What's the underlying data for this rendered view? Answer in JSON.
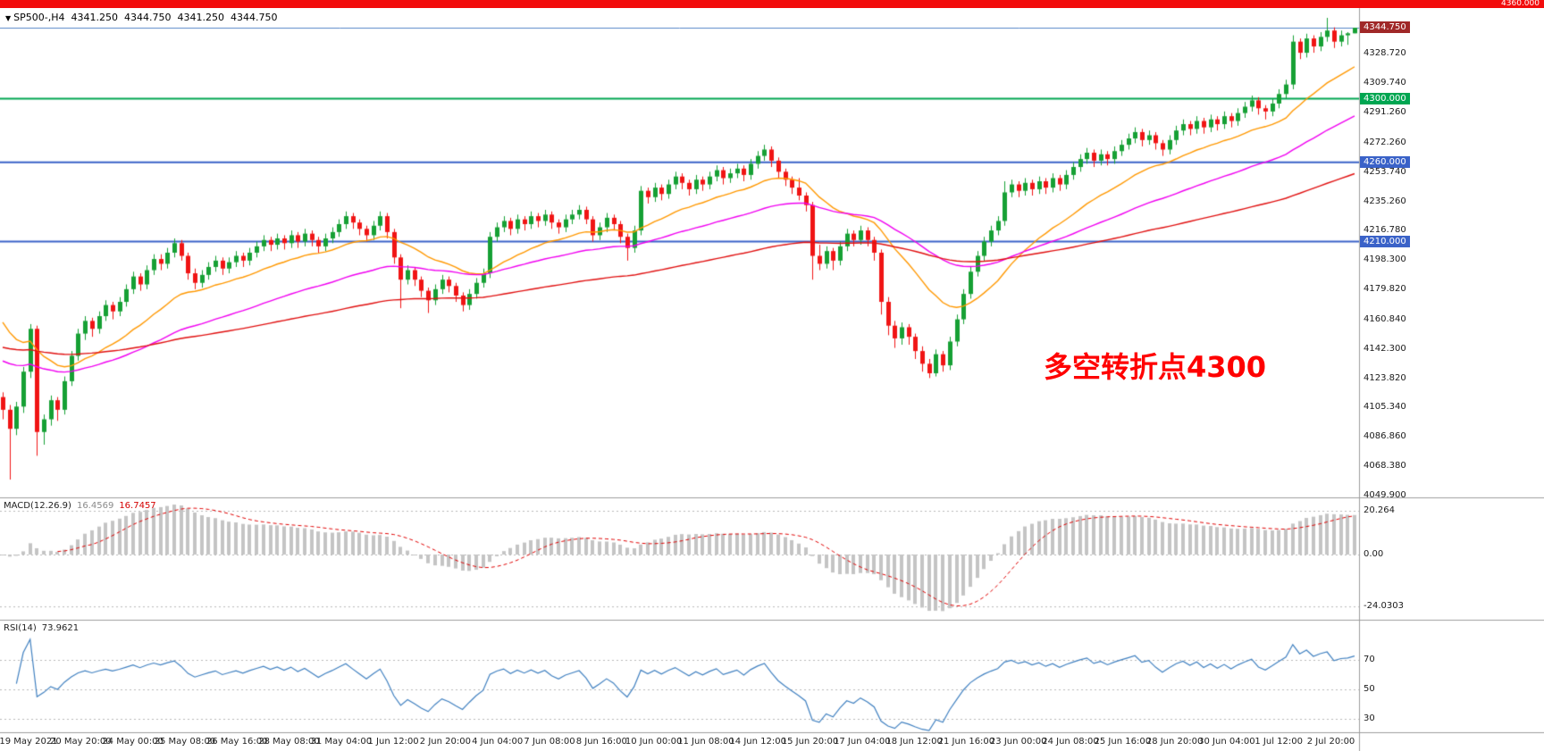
{
  "header": {
    "symbol": "SP500-,H4",
    "open": "4341.250",
    "high": "4344.750",
    "low": "4341.250",
    "close": "4344.750"
  },
  "icons": {
    "symbol_marker": "▼"
  },
  "annotation": {
    "text": "多空转折点4300",
    "color": "#FF0000"
  },
  "current_price_line": {
    "value": 4344.75,
    "color": "#5585C8"
  },
  "price_scale": {
    "current": {
      "label": "4344.750",
      "value": 4344.75,
      "bg": "#A02828"
    }
  },
  "hlines": [
    {
      "label": "4360.000",
      "value": 4360.0,
      "color": "#F20C0C",
      "style": "bar"
    },
    {
      "label": "4300.000",
      "value": 4300.0,
      "color": "#00A651"
    },
    {
      "label": "4260.000",
      "value": 4260.0,
      "color": "#3A62C8"
    },
    {
      "label": "4210.000",
      "value": 4210.0,
      "color": "#3A62C8"
    }
  ],
  "indicators": {
    "macd": {
      "name": "MACD(12.26.9)",
      "value_main": "16.4569",
      "value_signal": "16.7457",
      "fast": 12,
      "slow": 26,
      "signal": 9,
      "scale_max": {
        "label": "20.264",
        "value": 20.264
      },
      "scale_zero": {
        "label": "0.00",
        "value": 0
      },
      "scale_min": {
        "label": "-24.0303",
        "value": -24.0303
      },
      "hist_color": "#C4C4C4",
      "signal_color": "#E00000"
    },
    "rsi": {
      "name": "RSI(14)",
      "value": "73.9621",
      "period": 14,
      "levels": [
        {
          "label": "70",
          "value": 70
        },
        {
          "label": "50",
          "value": 50
        },
        {
          "label": "30",
          "value": 30
        }
      ],
      "line_color": "#4080C0"
    }
  },
  "chart_data": {
    "type": "candlestick",
    "symbol": "SP500-",
    "timeframe": "H4",
    "title": "SP500- H4 candlestick chart with MACD(12,26,9) and RSI(14)",
    "ylim": [
      4049.9,
      4360.0
    ],
    "grid": "off",
    "bull_color": "#16A034",
    "bear_color": "#F01414",
    "y_ticks": [
      {
        "label": "4328.720",
        "value": 4328.72
      },
      {
        "label": "4309.740",
        "value": 4309.74
      },
      {
        "label": "4291.260",
        "value": 4291.26
      },
      {
        "label": "4272.260",
        "value": 4272.26
      },
      {
        "label": "4253.740",
        "value": 4253.74
      },
      {
        "label": "4235.260",
        "value": 4235.26
      },
      {
        "label": "4216.780",
        "value": 4216.78
      },
      {
        "label": "4198.300",
        "value": 4198.3
      },
      {
        "label": "4179.820",
        "value": 4179.82
      },
      {
        "label": "4160.840",
        "value": 4160.84
      },
      {
        "label": "4142.300",
        "value": 4142.3
      },
      {
        "label": "4123.820",
        "value": 4123.82
      },
      {
        "label": "4105.340",
        "value": 4105.34
      },
      {
        "label": "4086.860",
        "value": 4086.86
      },
      {
        "label": "4068.380",
        "value": 4068.38
      },
      {
        "label": "4049.900",
        "value": 4049.9
      }
    ],
    "time_labels": [
      "19 May 2021",
      "20 May 20:00",
      "24 May 00:00",
      "25 May 08:00",
      "26 May 16:00",
      "28 May 08:00",
      "31 May 04:00",
      "1 Jun 12:00",
      "2 Jun 20:00",
      "4 Jun 04:00",
      "7 Jun 08:00",
      "8 Jun 16:00",
      "10 Jun 00:00",
      "11 Jun 08:00",
      "14 Jun 12:00",
      "15 Jun 20:00",
      "17 Jun 04:00",
      "18 Jun 12:00",
      "21 Jun 16:00",
      "23 Jun 00:00",
      "24 Jun 08:00",
      "25 Jun 16:00",
      "28 Jun 20:00",
      "30 Jun 04:00",
      "1 Jul 12:00",
      "2 Jul 20:00"
    ],
    "moving_averages": [
      {
        "period": 20,
        "color": "#FF9800",
        "start": 4165
      },
      {
        "period": 50,
        "color": "#F000F0",
        "start": 4136
      },
      {
        "period": 120,
        "color": "#E01010",
        "start": 4144
      }
    ],
    "candles": [
      [
        4112,
        4115,
        4098,
        4104
      ],
      [
        4104,
        4107,
        4060,
        4092
      ],
      [
        4092,
        4109,
        4088,
        4106
      ],
      [
        4106,
        4131,
        4102,
        4128
      ],
      [
        4128,
        4158,
        4124,
        4155
      ],
      [
        4155,
        4157,
        4075,
        4090
      ],
      [
        4090,
        4101,
        4082,
        4098
      ],
      [
        4098,
        4113,
        4094,
        4110
      ],
      [
        4110,
        4112,
        4097,
        4104
      ],
      [
        4104,
        4125,
        4101,
        4122
      ],
      [
        4122,
        4141,
        4119,
        4138
      ],
      [
        4138,
        4155,
        4135,
        4152
      ],
      [
        4152,
        4163,
        4148,
        4160
      ],
      [
        4160,
        4162,
        4150,
        4155
      ],
      [
        4155,
        4166,
        4152,
        4163
      ],
      [
        4163,
        4173,
        4160,
        4170
      ],
      [
        4170,
        4172,
        4161,
        4166
      ],
      [
        4166,
        4175,
        4163,
        4172
      ],
      [
        4172,
        4183,
        4169,
        4180
      ],
      [
        4180,
        4191,
        4177,
        4188
      ],
      [
        4188,
        4190,
        4179,
        4183
      ],
      [
        4183,
        4195,
        4180,
        4192
      ],
      [
        4192,
        4202,
        4189,
        4199
      ],
      [
        4199,
        4202,
        4192,
        4196
      ],
      [
        4196,
        4206,
        4193,
        4203
      ],
      [
        4203,
        4212,
        4200,
        4209
      ],
      [
        4209,
        4211,
        4198,
        4201
      ],
      [
        4201,
        4203,
        4186,
        4190
      ],
      [
        4190,
        4193,
        4180,
        4184
      ],
      [
        4184,
        4192,
        4181,
        4189
      ],
      [
        4189,
        4197,
        4186,
        4194
      ],
      [
        4194,
        4201,
        4191,
        4198
      ],
      [
        4198,
        4200,
        4189,
        4193
      ],
      [
        4193,
        4200,
        4190,
        4197
      ],
      [
        4197,
        4204,
        4194,
        4201
      ],
      [
        4201,
        4203,
        4194,
        4198
      ],
      [
        4198,
        4206,
        4195,
        4203
      ],
      [
        4203,
        4210,
        4200,
        4207
      ],
      [
        4207,
        4214,
        4204,
        4211
      ],
      [
        4211,
        4213,
        4204,
        4208
      ],
      [
        4208,
        4215,
        4205,
        4212
      ],
      [
        4212,
        4214,
        4205,
        4209
      ],
      [
        4209,
        4217,
        4206,
        4214
      ],
      [
        4214,
        4216,
        4206,
        4210
      ],
      [
        4210,
        4218,
        4207,
        4215
      ],
      [
        4215,
        4217,
        4207,
        4211
      ],
      [
        4211,
        4213,
        4203,
        4207
      ],
      [
        4207,
        4215,
        4204,
        4212
      ],
      [
        4212,
        4219,
        4209,
        4216
      ],
      [
        4216,
        4224,
        4213,
        4221
      ],
      [
        4221,
        4229,
        4218,
        4226
      ],
      [
        4226,
        4228,
        4218,
        4222
      ],
      [
        4222,
        4224,
        4214,
        4218
      ],
      [
        4218,
        4220,
        4210,
        4214
      ],
      [
        4214,
        4223,
        4211,
        4220
      ],
      [
        4220,
        4229,
        4217,
        4226
      ],
      [
        4226,
        4228,
        4212,
        4216
      ],
      [
        4216,
        4218,
        4196,
        4200
      ],
      [
        4200,
        4202,
        4168,
        4186
      ],
      [
        4186,
        4195,
        4183,
        4192
      ],
      [
        4192,
        4194,
        4182,
        4186
      ],
      [
        4186,
        4188,
        4175,
        4179
      ],
      [
        4179,
        4181,
        4165,
        4173
      ],
      [
        4173,
        4183,
        4170,
        4180
      ],
      [
        4180,
        4189,
        4177,
        4186
      ],
      [
        4186,
        4188,
        4178,
        4182
      ],
      [
        4182,
        4184,
        4172,
        4176
      ],
      [
        4176,
        4178,
        4166,
        4170
      ],
      [
        4170,
        4180,
        4167,
        4177
      ],
      [
        4177,
        4187,
        4174,
        4184
      ],
      [
        4184,
        4193,
        4181,
        4190
      ],
      [
        4190,
        4216,
        4187,
        4213
      ],
      [
        4213,
        4222,
        4210,
        4219
      ],
      [
        4219,
        4226,
        4216,
        4223
      ],
      [
        4223,
        4225,
        4214,
        4218
      ],
      [
        4218,
        4227,
        4215,
        4224
      ],
      [
        4224,
        4226,
        4217,
        4221
      ],
      [
        4221,
        4229,
        4218,
        4226
      ],
      [
        4226,
        4228,
        4219,
        4223
      ],
      [
        4223,
        4230,
        4220,
        4227
      ],
      [
        4227,
        4229,
        4218,
        4222
      ],
      [
        4222,
        4224,
        4215,
        4219
      ],
      [
        4219,
        4227,
        4216,
        4224
      ],
      [
        4224,
        4230,
        4221,
        4227
      ],
      [
        4227,
        4233,
        4224,
        4230
      ],
      [
        4230,
        4232,
        4221,
        4224
      ],
      [
        4224,
        4226,
        4210,
        4214
      ],
      [
        4214,
        4222,
        4211,
        4219
      ],
      [
        4219,
        4228,
        4216,
        4225
      ],
      [
        4225,
        4227,
        4217,
        4221
      ],
      [
        4221,
        4223,
        4209,
        4213
      ],
      [
        4213,
        4215,
        4198,
        4206
      ],
      [
        4206,
        4220,
        4203,
        4217
      ],
      [
        4217,
        4245,
        4214,
        4242
      ],
      [
        4242,
        4244,
        4234,
        4238
      ],
      [
        4238,
        4247,
        4235,
        4244
      ],
      [
        4244,
        4246,
        4236,
        4240
      ],
      [
        4240,
        4249,
        4237,
        4246
      ],
      [
        4246,
        4254,
        4243,
        4251
      ],
      [
        4251,
        4253,
        4243,
        4247
      ],
      [
        4247,
        4249,
        4239,
        4243
      ],
      [
        4243,
        4252,
        4240,
        4249
      ],
      [
        4249,
        4251,
        4242,
        4246
      ],
      [
        4246,
        4254,
        4243,
        4251
      ],
      [
        4251,
        4258,
        4248,
        4255
      ],
      [
        4255,
        4257,
        4246,
        4250
      ],
      [
        4250,
        4256,
        4247,
        4253
      ],
      [
        4253,
        4259,
        4250,
        4256
      ],
      [
        4256,
        4258,
        4248,
        4252
      ],
      [
        4252,
        4262,
        4249,
        4259
      ],
      [
        4259,
        4267,
        4256,
        4264
      ],
      [
        4264,
        4271,
        4261,
        4268
      ],
      [
        4268,
        4270,
        4257,
        4261
      ],
      [
        4261,
        4263,
        4250,
        4254
      ],
      [
        4254,
        4256,
        4245,
        4249
      ],
      [
        4249,
        4251,
        4240,
        4244
      ],
      [
        4244,
        4250,
        4236,
        4239
      ],
      [
        4239,
        4241,
        4229,
        4233
      ],
      [
        4233,
        4235,
        4186,
        4201
      ],
      [
        4201,
        4208,
        4192,
        4196
      ],
      [
        4196,
        4207,
        4193,
        4204
      ],
      [
        4204,
        4206,
        4192,
        4198
      ],
      [
        4198,
        4210,
        4195,
        4207
      ],
      [
        4207,
        4218,
        4204,
        4215
      ],
      [
        4215,
        4217,
        4207,
        4211
      ],
      [
        4211,
        4220,
        4208,
        4217
      ],
      [
        4217,
        4219,
        4207,
        4211
      ],
      [
        4211,
        4213,
        4198,
        4203
      ],
      [
        4203,
        4205,
        4164,
        4172
      ],
      [
        4172,
        4175,
        4151,
        4157
      ],
      [
        4157,
        4160,
        4143,
        4149
      ],
      [
        4149,
        4159,
        4145,
        4156
      ],
      [
        4156,
        4158,
        4145,
        4150
      ],
      [
        4150,
        4152,
        4136,
        4141
      ],
      [
        4141,
        4144,
        4128,
        4133
      ],
      [
        4133,
        4136,
        4124,
        4127
      ],
      [
        4127,
        4142,
        4125,
        4139
      ],
      [
        4139,
        4141,
        4128,
        4132
      ],
      [
        4132,
        4150,
        4129,
        4147
      ],
      [
        4147,
        4164,
        4144,
        4161
      ],
      [
        4161,
        4180,
        4158,
        4177
      ],
      [
        4177,
        4194,
        4174,
        4191
      ],
      [
        4191,
        4204,
        4188,
        4201
      ],
      [
        4201,
        4213,
        4198,
        4210
      ],
      [
        4210,
        4220,
        4207,
        4217
      ],
      [
        4217,
        4226,
        4214,
        4223
      ],
      [
        4223,
        4248,
        4220,
        4241
      ],
      [
        4241,
        4249,
        4238,
        4246
      ],
      [
        4246,
        4248,
        4238,
        4242
      ],
      [
        4242,
        4250,
        4239,
        4247
      ],
      [
        4247,
        4249,
        4239,
        4243
      ],
      [
        4243,
        4251,
        4240,
        4248
      ],
      [
        4248,
        4250,
        4240,
        4244
      ],
      [
        4244,
        4253,
        4241,
        4250
      ],
      [
        4250,
        4252,
        4242,
        4246
      ],
      [
        4246,
        4255,
        4243,
        4252
      ],
      [
        4252,
        4260,
        4249,
        4257
      ],
      [
        4257,
        4265,
        4254,
        4262
      ],
      [
        4262,
        4269,
        4259,
        4266
      ],
      [
        4266,
        4268,
        4257,
        4261
      ],
      [
        4261,
        4268,
        4258,
        4265
      ],
      [
        4265,
        4267,
        4258,
        4262
      ],
      [
        4262,
        4270,
        4259,
        4267
      ],
      [
        4267,
        4274,
        4264,
        4271
      ],
      [
        4271,
        4278,
        4268,
        4275
      ],
      [
        4275,
        4282,
        4272,
        4279
      ],
      [
        4279,
        4281,
        4270,
        4274
      ],
      [
        4274,
        4280,
        4271,
        4277
      ],
      [
        4277,
        4279,
        4268,
        4272
      ],
      [
        4272,
        4274,
        4264,
        4268
      ],
      [
        4268,
        4277,
        4265,
        4274
      ],
      [
        4274,
        4283,
        4271,
        4280
      ],
      [
        4280,
        4287,
        4277,
        4284
      ],
      [
        4284,
        4286,
        4277,
        4281
      ],
      [
        4281,
        4289,
        4278,
        4286
      ],
      [
        4286,
        4288,
        4278,
        4282
      ],
      [
        4282,
        4290,
        4279,
        4287
      ],
      [
        4287,
        4289,
        4280,
        4284
      ],
      [
        4284,
        4292,
        4281,
        4289
      ],
      [
        4289,
        4291,
        4282,
        4286
      ],
      [
        4286,
        4294,
        4283,
        4291
      ],
      [
        4291,
        4298,
        4288,
        4295
      ],
      [
        4295,
        4302,
        4292,
        4299
      ],
      [
        4299,
        4301,
        4290,
        4294
      ],
      [
        4294,
        4296,
        4287,
        4292
      ],
      [
        4292,
        4300,
        4289,
        4297
      ],
      [
        4297,
        4306,
        4294,
        4303
      ],
      [
        4303,
        4312,
        4300,
        4309
      ],
      [
        4309,
        4340,
        4306,
        4336
      ],
      [
        4336,
        4338,
        4325,
        4329
      ],
      [
        4329,
        4341,
        4326,
        4338
      ],
      [
        4338,
        4340,
        4329,
        4333
      ],
      [
        4333,
        4342,
        4330,
        4339
      ],
      [
        4339,
        4351,
        4336,
        4343
      ],
      [
        4343,
        4345,
        4332,
        4336
      ],
      [
        4336,
        4343,
        4333,
        4340
      ],
      [
        4340,
        4342,
        4334,
        4341.25
      ],
      [
        4341.25,
        4344.75,
        4341.25,
        4344.75
      ]
    ]
  }
}
